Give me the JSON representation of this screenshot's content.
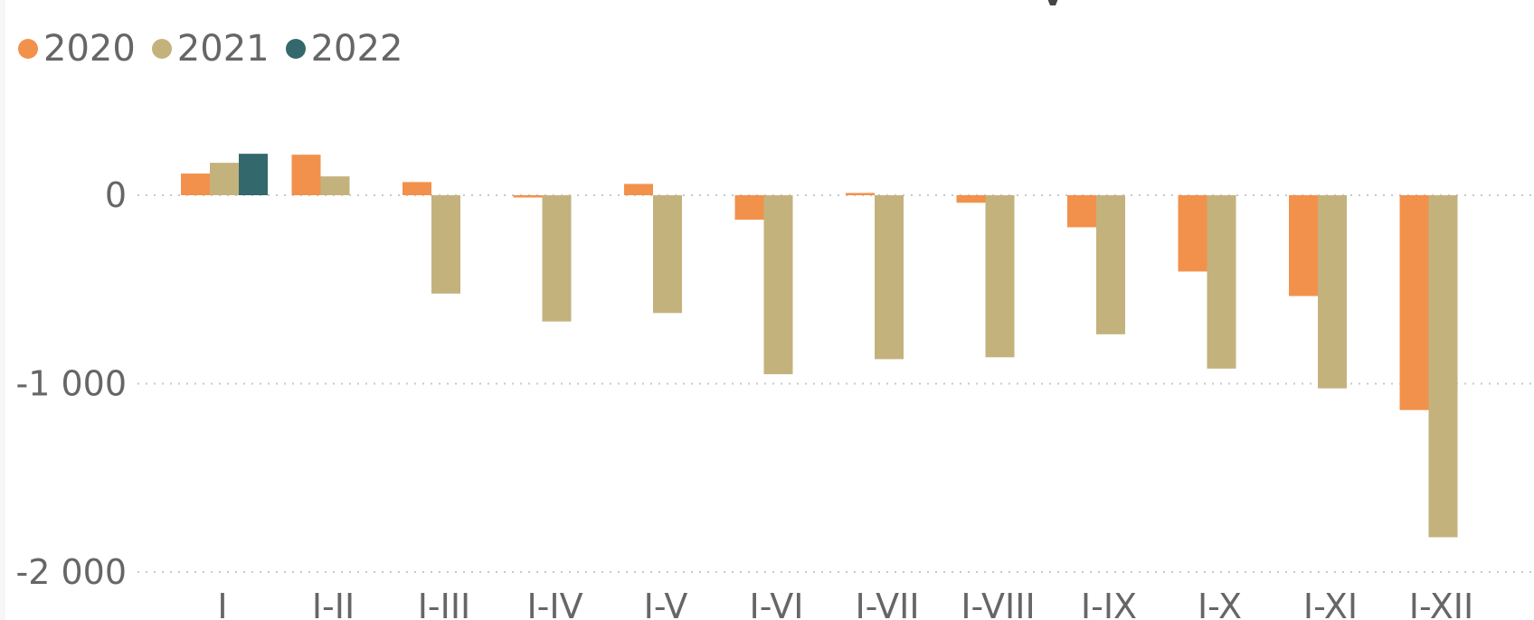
{
  "chart_data": {
    "type": "bar",
    "title": "",
    "xlabel": "",
    "ylabel": "",
    "categories": [
      "I",
      "I-II",
      "I-III",
      "I-IV",
      "I-V",
      "I-VI",
      "I-VII",
      "I-VIII",
      "I-IX",
      "I-X",
      "I-XI",
      "I-XII"
    ],
    "series": [
      {
        "name": "2020",
        "color": "#F2914B",
        "values": [
          115,
          215,
          70,
          -12,
          60,
          -130,
          12,
          -40,
          -170,
          -405,
          -535,
          -1140
        ]
      },
      {
        "name": "2021",
        "color": "#C4B27D",
        "values": [
          172,
          100,
          -522,
          -670,
          -625,
          -950,
          -870,
          -860,
          -738,
          -920,
          -1025,
          -1815
        ]
      },
      {
        "name": "2022",
        "color": "#33696C",
        "values": [
          220,
          null,
          null,
          null,
          null,
          null,
          null,
          null,
          null,
          null,
          null,
          null
        ]
      }
    ],
    "ylim": [
      -2000,
      200
    ],
    "yticks": [
      0,
      -1000,
      -2000
    ],
    "ytick_labels": [
      "0",
      "-1 000",
      "-2 000"
    ],
    "grid": true,
    "legend": "top-left"
  }
}
